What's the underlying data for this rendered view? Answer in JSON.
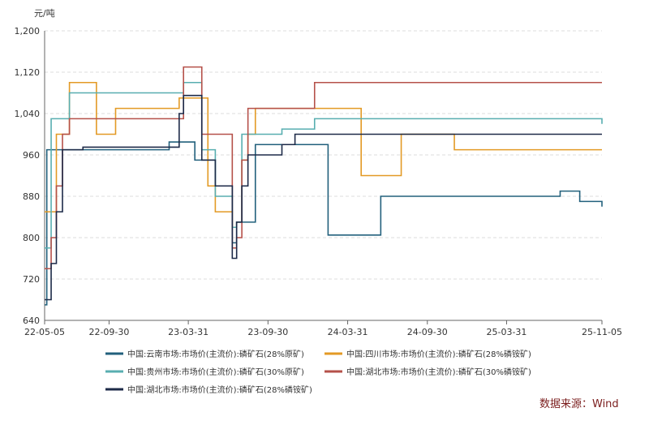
{
  "chart_data": {
    "type": "line",
    "unit": "元/吨",
    "x": [
      "22-05-05",
      "22-05-10",
      "22-05-20",
      "22-06-01",
      "22-06-15",
      "22-07-01",
      "22-08-01",
      "22-08-15",
      "22-09-01",
      "22-10-15",
      "22-12-01",
      "23-01-15",
      "23-02-15",
      "23-03-10",
      "23-03-20",
      "23-04-01",
      "23-04-15",
      "23-05-01",
      "23-05-15",
      "23-06-01",
      "23-06-20",
      "23-07-01",
      "23-07-10",
      "23-07-20",
      "23-08-01",
      "23-08-15",
      "23-09-01",
      "23-10-01",
      "23-11-01",
      "23-12-01",
      "24-01-15",
      "24-02-15",
      "24-03-01",
      "24-05-01",
      "24-06-15",
      "24-07-01",
      "24-08-01",
      "24-10-01",
      "24-12-01",
      "25-01-15",
      "25-03-01",
      "25-06-01",
      "25-08-01",
      "25-09-15",
      "25-10-15",
      "25-11-05"
    ],
    "series": [
      {
        "name": "中国:云南市场:市场价(主流价):磷矿石(28%原矿)",
        "color": "#22607c",
        "values": [
          670,
          970,
          970,
          970,
          970,
          970,
          970,
          970,
          970,
          970,
          970,
          970,
          985,
          985,
          985,
          985,
          950,
          950,
          950,
          900,
          900,
          900,
          790,
          830,
          830,
          830,
          980,
          980,
          980,
          980,
          980,
          805,
          805,
          805,
          880,
          880,
          880,
          880,
          880,
          880,
          880,
          880,
          890,
          870,
          870,
          860
        ]
      },
      {
        "name": "中国:四川市场:市场价(主流价):磷矿石(28%磷铵矿)",
        "color": "#e39a25",
        "values": [
          850,
          850,
          850,
          1000,
          1000,
          1100,
          1100,
          1100,
          1000,
          1050,
          1050,
          1050,
          1050,
          1070,
          1070,
          1070,
          1070,
          1070,
          900,
          850,
          850,
          850,
          820,
          830,
          950,
          1000,
          1050,
          1050,
          1050,
          1050,
          1050,
          1050,
          1050,
          920,
          920,
          920,
          1000,
          1000,
          970,
          970,
          970,
          970,
          970,
          970,
          970,
          970
        ]
      },
      {
        "name": "中国:贵州市场:市场价(主流价):磷矿石(30%原矿)",
        "color": "#58aeb0",
        "values": [
          780,
          780,
          1030,
          1030,
          1030,
          1080,
          1080,
          1080,
          1080,
          1080,
          1080,
          1080,
          1080,
          1080,
          1100,
          1100,
          1100,
          970,
          970,
          880,
          880,
          880,
          820,
          830,
          1000,
          1000,
          1000,
          1000,
          1010,
          1010,
          1030,
          1030,
          1030,
          1030,
          1030,
          1030,
          1030,
          1030,
          1030,
          1030,
          1030,
          1030,
          1030,
          1030,
          1030,
          1020
        ]
      },
      {
        "name": "中国:湖北市场:市场价(主流价):磷矿石(30%磷铵矿)",
        "color": "#b5514a",
        "values": [
          740,
          740,
          800,
          900,
          1000,
          1030,
          1030,
          1030,
          1030,
          1030,
          1030,
          1030,
          1030,
          1030,
          1130,
          1130,
          1130,
          1000,
          1000,
          1000,
          1000,
          1000,
          780,
          800,
          950,
          1050,
          1050,
          1050,
          1050,
          1050,
          1100,
          1100,
          1100,
          1100,
          1100,
          1100,
          1100,
          1100,
          1100,
          1100,
          1100,
          1100,
          1100,
          1100,
          1100,
          1100
        ]
      },
      {
        "name": "中国:湖北市场:市场价(主流价):磷矿石(28%磷铵矿)",
        "color": "#1d2a48",
        "values": [
          680,
          680,
          750,
          850,
          970,
          970,
          975,
          975,
          975,
          975,
          975,
          975,
          975,
          1040,
          1075,
          1075,
          1075,
          950,
          950,
          900,
          900,
          900,
          760,
          830,
          900,
          960,
          960,
          960,
          980,
          1000,
          1000,
          1000,
          1000,
          1000,
          1000,
          1000,
          1000,
          1000,
          1000,
          1000,
          1000,
          1000,
          1000,
          1000,
          1000,
          1000
        ]
      }
    ],
    "ylim": [
      640,
      1200
    ],
    "yticks": [
      640,
      720,
      800,
      880,
      960,
      {
        "value": 1040,
        "label": "1,040"
      },
      {
        "value": 1120,
        "label": "1,120"
      },
      {
        "value": 1200,
        "label": "1,200"
      }
    ],
    "xlim": [
      "22-05-05",
      "25-11-05"
    ],
    "xticks": [
      "22-05-05",
      "22-09-30",
      "23-03-31",
      "23-09-30",
      "24-03-31",
      "24-09-30",
      "25-03-31",
      "25-11-05"
    ],
    "grid": true,
    "step": true,
    "source": "数据来源：Wind"
  }
}
